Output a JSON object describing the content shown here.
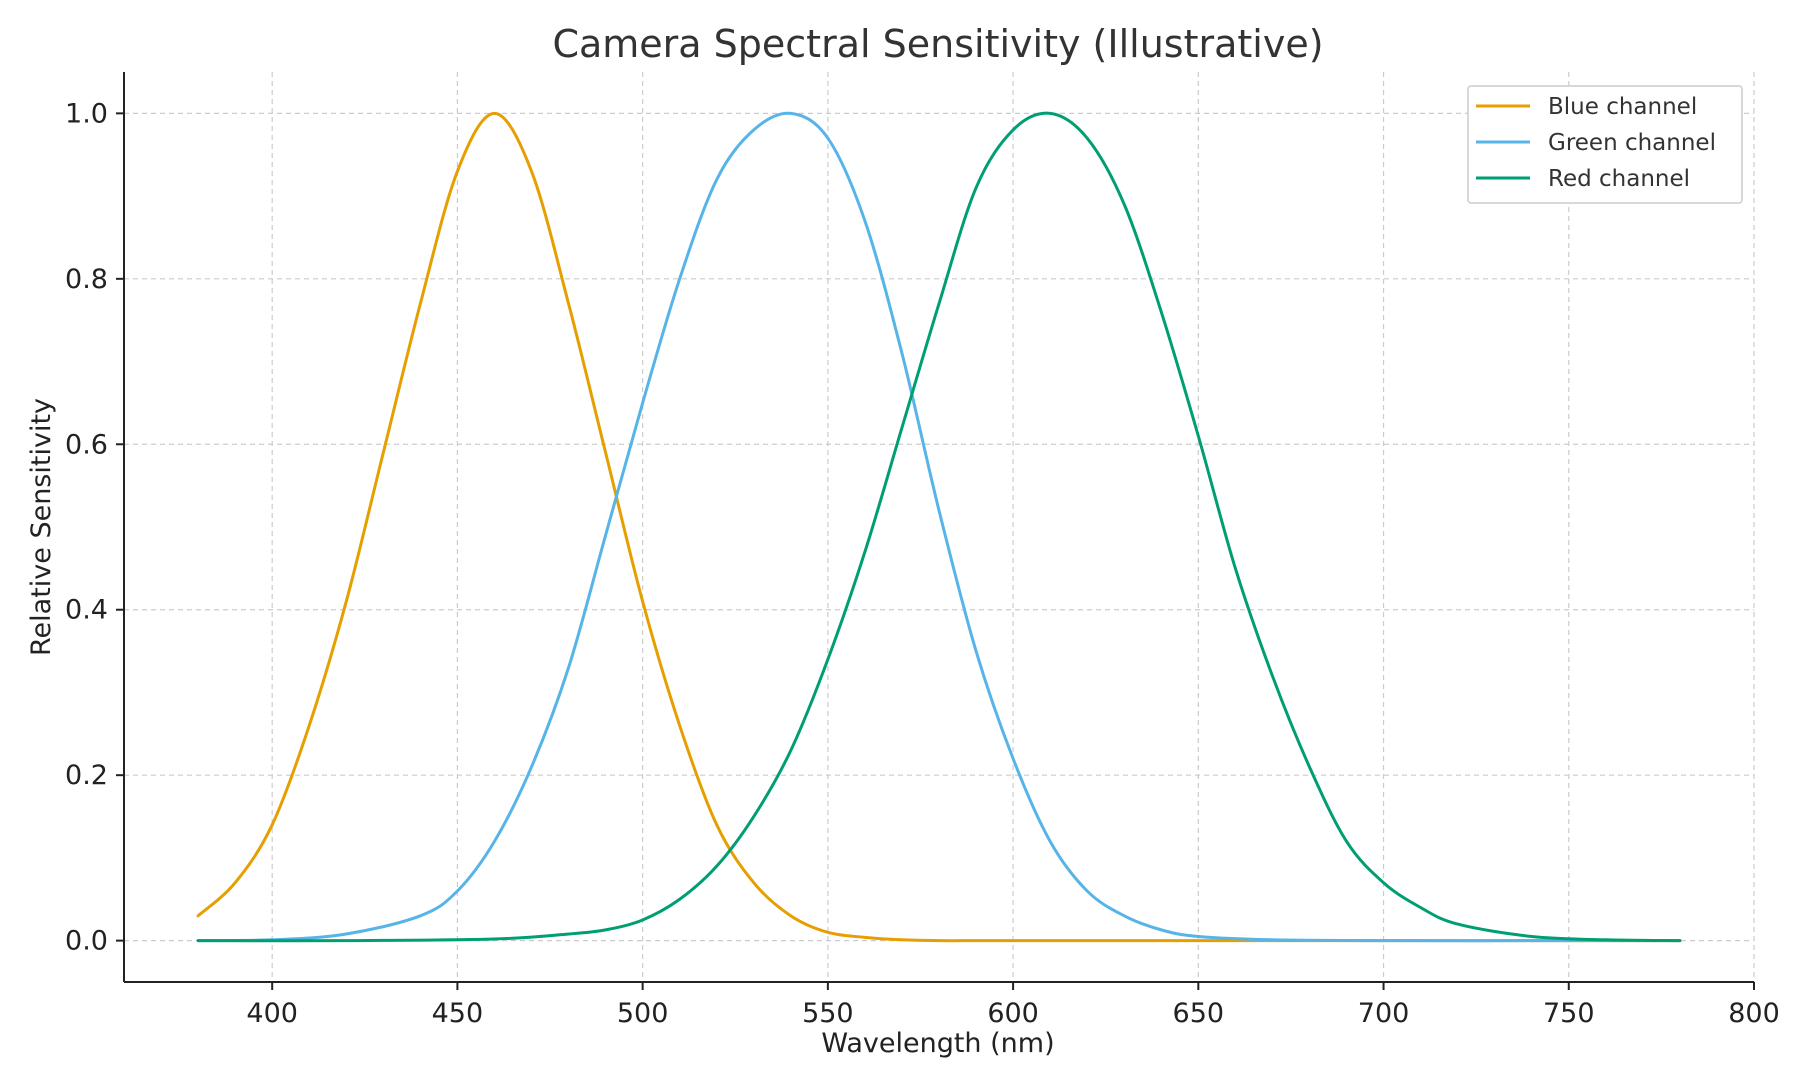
{
  "chart_data": {
    "type": "line",
    "title": "Camera Spectral Sensitivity (Illustrative)",
    "xlabel": "Wavelength (nm)",
    "ylabel": "Relative Sensitivity",
    "xlim": [
      360,
      800
    ],
    "ylim": [
      -0.05,
      1.05
    ],
    "xticks": [
      400,
      450,
      500,
      550,
      600,
      650,
      700,
      750,
      800
    ],
    "yticks": [
      0.0,
      0.2,
      0.4,
      0.6,
      0.8,
      1.0
    ],
    "xtick_labels": [
      "400",
      "450",
      "500",
      "550",
      "600",
      "650",
      "700",
      "750",
      "800"
    ],
    "ytick_labels": [
      "0.0",
      "0.2",
      "0.4",
      "0.6",
      "0.8",
      "1.0"
    ],
    "grid": true,
    "legend_position": "top-right",
    "series": [
      {
        "name": "Blue channel",
        "color": "#E69F00",
        "x": [
          380,
          390,
          400,
          410,
          420,
          430,
          440,
          450,
          460,
          470,
          480,
          490,
          500,
          510,
          520,
          530,
          540,
          550,
          560,
          570,
          580,
          590,
          600,
          620,
          650,
          700,
          750,
          780
        ],
        "y": [
          0.03,
          0.07,
          0.14,
          0.26,
          0.41,
          0.59,
          0.77,
          0.93,
          1.0,
          0.93,
          0.77,
          0.59,
          0.41,
          0.26,
          0.14,
          0.07,
          0.03,
          0.01,
          0.004,
          0.001,
          0.0,
          0.0,
          0.0,
          0.0,
          0.0,
          0.0,
          0.0,
          0.0
        ]
      },
      {
        "name": "Green channel",
        "color": "#56B4E9",
        "x": [
          380,
          400,
          420,
          440,
          450,
          460,
          470,
          480,
          490,
          500,
          510,
          520,
          530,
          540,
          550,
          560,
          570,
          580,
          590,
          600,
          610,
          620,
          630,
          640,
          650,
          670,
          700,
          750,
          780
        ],
        "y": [
          0.0,
          0.001,
          0.008,
          0.03,
          0.06,
          0.12,
          0.21,
          0.33,
          0.49,
          0.65,
          0.8,
          0.92,
          0.98,
          1.0,
          0.97,
          0.87,
          0.71,
          0.52,
          0.35,
          0.22,
          0.12,
          0.06,
          0.03,
          0.013,
          0.005,
          0.001,
          0.0,
          0.0,
          0.0
        ]
      },
      {
        "name": "Red channel",
        "color": "#009E73",
        "x": [
          380,
          420,
          460,
          480,
          490,
          500,
          510,
          520,
          530,
          540,
          550,
          560,
          570,
          580,
          590,
          600,
          610,
          620,
          630,
          640,
          650,
          660,
          670,
          680,
          690,
          700,
          710,
          720,
          740,
          760,
          780
        ],
        "y": [
          0.0,
          0.0,
          0.002,
          0.008,
          0.013,
          0.025,
          0.05,
          0.09,
          0.15,
          0.23,
          0.34,
          0.47,
          0.62,
          0.77,
          0.91,
          0.98,
          1.0,
          0.97,
          0.89,
          0.76,
          0.61,
          0.45,
          0.32,
          0.21,
          0.12,
          0.07,
          0.04,
          0.02,
          0.005,
          0.001,
          0.0
        ]
      }
    ]
  }
}
